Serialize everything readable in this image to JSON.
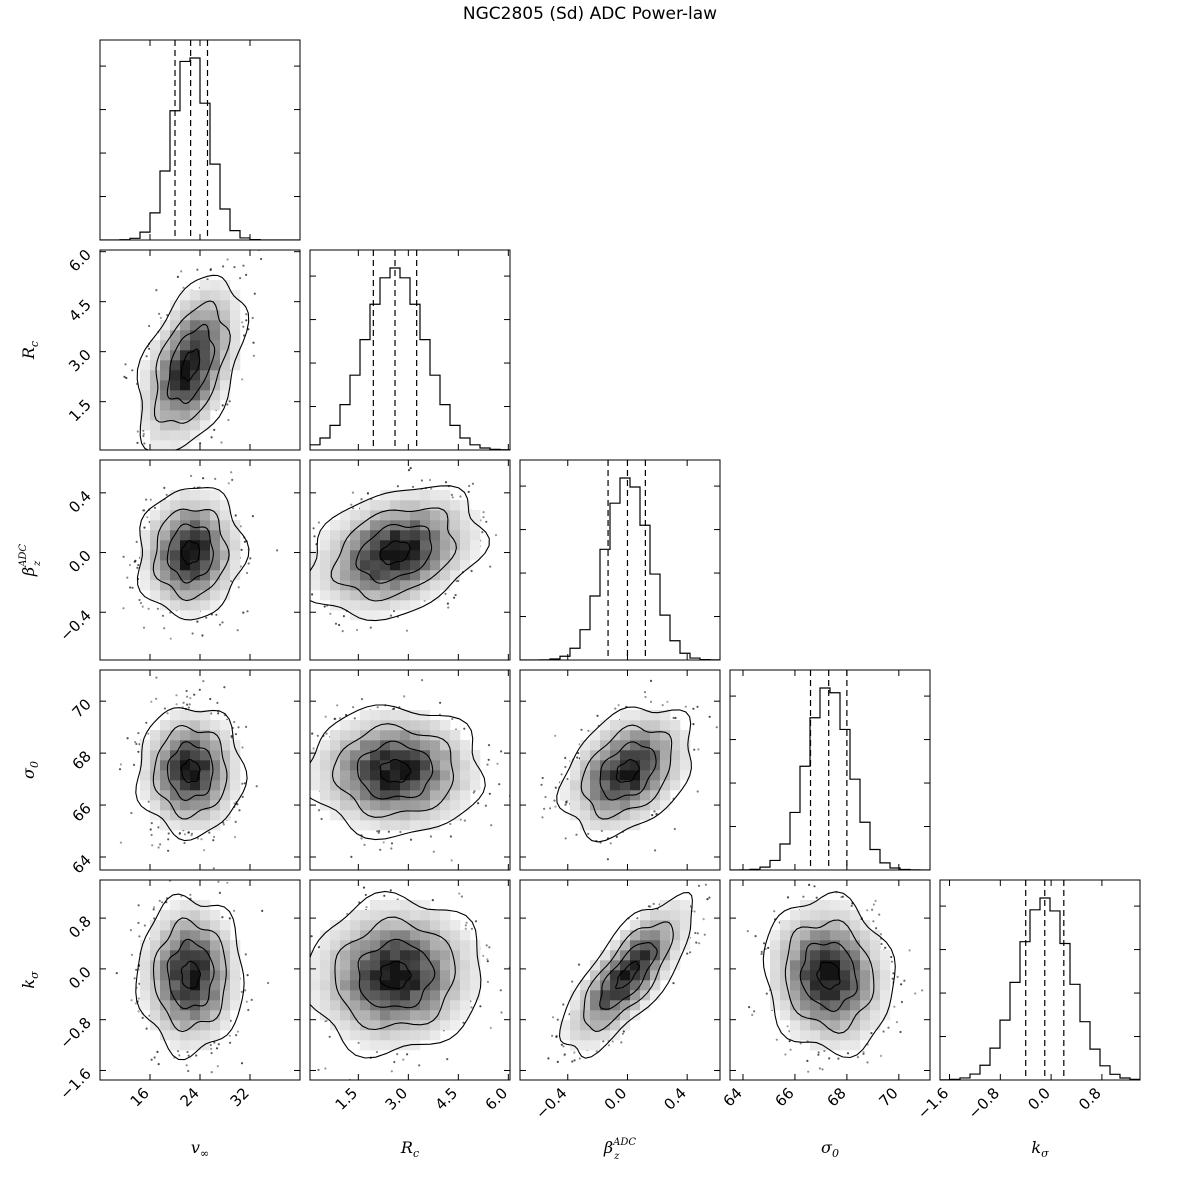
{
  "title": "NGC2805 (Sd) ADC Power-law",
  "chart_data": {
    "type": "corner",
    "parameters": [
      {
        "key": "vinf",
        "label": "v∞",
        "label_html": "v<sub>∞</sub>",
        "range": [
          8,
          40
        ],
        "ticks": [
          16,
          24,
          32
        ],
        "tick_labels": [
          "16",
          "24",
          "32"
        ],
        "median": 22.5,
        "q16": 20.0,
        "q84": 25.2,
        "sd": 2.9
      },
      {
        "key": "Rc",
        "label": "Rc",
        "range": [
          0.05,
          6.05
        ],
        "ticks": [
          1.5,
          3.0,
          4.5,
          6.0
        ],
        "tick_labels": [
          "1.5",
          "3.0",
          "4.5",
          "6.0"
        ],
        "median": 2.6,
        "q16": 1.95,
        "q84": 3.25,
        "sd": 0.9
      },
      {
        "key": "beta",
        "label": "βz^ADC",
        "range": [
          -0.72,
          0.62
        ],
        "ticks": [
          -0.4,
          0.0,
          0.4
        ],
        "tick_labels": [
          "−0.4",
          "0.0",
          "0.4"
        ],
        "median": 0.0,
        "q16": -0.13,
        "q84": 0.12,
        "sd": 0.15
      },
      {
        "key": "sigma0",
        "label": "σ0",
        "range": [
          63.5,
          71.2
        ],
        "ticks": [
          64,
          66,
          68,
          70
        ],
        "tick_labels": [
          "64",
          "66",
          "68",
          "70"
        ],
        "median": 67.3,
        "q16": 66.6,
        "q84": 68.0,
        "sd": 0.85
      },
      {
        "key": "ksigma",
        "label": "kσ",
        "range": [
          -1.75,
          1.4
        ],
        "ticks": [
          -1.6,
          -0.8,
          0.0,
          0.8
        ],
        "tick_labels": [
          "−1.6",
          "−0.8",
          "0.0",
          "0.8"
        ],
        "median": -0.1,
        "q16": -0.4,
        "q84": 0.2,
        "sd": 0.42
      }
    ],
    "correlations": {
      "vinf-Rc": 0.45,
      "vinf-beta": 0.05,
      "vinf-sigma0": 0.0,
      "vinf-ksigma": 0.0,
      "Rc-beta": 0.3,
      "Rc-sigma0": 0.0,
      "Rc-ksigma": 0.05,
      "beta-sigma0": 0.35,
      "beta-ksigma": 0.75,
      "sigma0-ksigma": -0.1
    },
    "quantile_lines": "dashed at 16th, 50th, 84th percentiles",
    "contour_levels": 4
  },
  "axis_label_text": {
    "vinf": {
      "base": "v",
      "sub": "∞"
    },
    "Rc": {
      "base": "R",
      "sub": "c"
    },
    "beta": {
      "base": "β",
      "sub": "z",
      "sup": "ADC"
    },
    "sigma0": {
      "base": "σ",
      "sub": "0"
    },
    "ksigma": {
      "base": "k",
      "sub": "σ"
    }
  }
}
